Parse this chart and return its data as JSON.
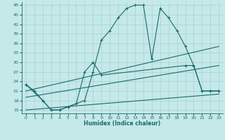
{
  "xlabel": "Humidex (Indice chaleur)",
  "bg_color": "#c5e8e8",
  "grid_color": "#a8d0d0",
  "line_color": "#1a6b6b",
  "xlim": [
    -0.5,
    23.5
  ],
  "ylim": [
    14,
    49
  ],
  "yticks": [
    15,
    18,
    21,
    24,
    27,
    30,
    33,
    36,
    39,
    42,
    45,
    48
  ],
  "xticks": [
    0,
    1,
    2,
    3,
    4,
    5,
    6,
    7,
    8,
    9,
    10,
    11,
    12,
    13,
    14,
    15,
    16,
    17,
    18,
    19,
    20,
    21,
    22,
    23
  ],
  "series": [
    {
      "x": [
        0,
        1,
        2,
        3,
        4,
        5,
        6,
        7,
        8,
        9,
        10,
        11,
        12,
        13,
        14,
        15,
        16,
        17,
        18,
        19,
        20,
        21,
        22,
        23
      ],
      "y": [
        23,
        21,
        18,
        15,
        15,
        16,
        17,
        18,
        27,
        37,
        40,
        44,
        47,
        48,
        48,
        31,
        47,
        44,
        40,
        35,
        29,
        21,
        21,
        21
      ],
      "marker": true
    },
    {
      "x": [
        0,
        2,
        3,
        4,
        5,
        6,
        7,
        8,
        9,
        19,
        20,
        21,
        22,
        23
      ],
      "y": [
        23,
        18,
        15,
        15,
        16,
        17,
        27,
        30,
        26,
        29,
        29,
        21,
        21,
        21
      ],
      "marker": true
    },
    {
      "x": [
        0,
        23
      ],
      "y": [
        21,
        35
      ],
      "marker": false
    },
    {
      "x": [
        0,
        23
      ],
      "y": [
        19,
        29
      ],
      "marker": false
    },
    {
      "x": [
        0,
        23
      ],
      "y": [
        15,
        20
      ],
      "marker": false
    }
  ]
}
